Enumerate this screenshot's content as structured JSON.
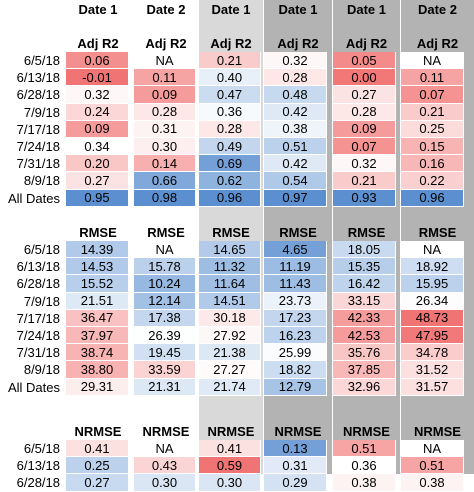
{
  "colors": {
    "band_light": "#d9d9d9",
    "band_dark": "#b3b3b3",
    "blue": "#5b8fd0",
    "red": "#ef5b5b",
    "neutral": "#ffffff"
  },
  "chart_data": {
    "type": "table",
    "column_headers": [
      "Date 1",
      "Date 2",
      "Date 1",
      "Date 1",
      "Date 1",
      "Date 2"
    ],
    "column_bands": [
      "none",
      "none",
      "light",
      "dark",
      "darker",
      "darker"
    ],
    "row_labels": [
      "6/5/18",
      "6/13/18",
      "6/28/18",
      "7/9/18",
      "7/17/18",
      "7/24/18",
      "7/31/18",
      "8/9/18",
      "All Dates"
    ],
    "sections": [
      {
        "metric_labels": [
          "Adj R2",
          "Adj R2",
          "Adj R2",
          "Adj R2",
          "Adj R2",
          "Adj R2"
        ],
        "higher_is_better": true,
        "row_labels": [
          "6/5/18",
          "6/13/18",
          "6/28/18",
          "7/9/18",
          "7/17/18",
          "7/24/18",
          "7/31/18",
          "8/9/18",
          "All Dates"
        ],
        "rows": [
          [
            "0.06",
            "NA",
            "0.21",
            "0.32",
            "0.05",
            "NA"
          ],
          [
            "-0.01",
            "0.11",
            "0.40",
            "0.28",
            "0.00",
            "0.11"
          ],
          [
            "0.32",
            "0.09",
            "0.47",
            "0.48",
            "0.27",
            "0.07"
          ],
          [
            "0.24",
            "0.28",
            "0.36",
            "0.42",
            "0.28",
            "0.21"
          ],
          [
            "0.09",
            "0.31",
            "0.28",
            "0.38",
            "0.09",
            "0.25"
          ],
          [
            "0.34",
            "0.30",
            "0.49",
            "0.51",
            "0.07",
            "0.15"
          ],
          [
            "0.20",
            "0.14",
            "0.69",
            "0.42",
            "0.32",
            "0.16"
          ],
          [
            "0.27",
            "0.66",
            "0.62",
            "0.54",
            "0.21",
            "0.22"
          ],
          [
            "0.95",
            "0.98",
            "0.96",
            "0.97",
            "0.93",
            "0.96"
          ]
        ]
      },
      {
        "metric_labels": [
          "RMSE",
          "RMSE",
          "RMSE",
          "RMSE",
          "RMSE",
          "RMSE"
        ],
        "higher_is_better": false,
        "row_labels": [
          "6/5/18",
          "6/13/18",
          "6/28/18",
          "7/9/18",
          "7/17/18",
          "7/24/18",
          "7/31/18",
          "8/9/18",
          "All Dates"
        ],
        "rows": [
          [
            "14.39",
            "NA",
            "14.65",
            "4.65",
            "18.05",
            "NA"
          ],
          [
            "14.53",
            "15.78",
            "11.32",
            "11.19",
            "15.35",
            "18.92"
          ],
          [
            "15.52",
            "10.24",
            "11.64",
            "11.43",
            "16.42",
            "15.95"
          ],
          [
            "21.51",
            "12.14",
            "14.51",
            "23.73",
            "33.15",
            "26.34"
          ],
          [
            "36.47",
            "17.38",
            "30.18",
            "17.23",
            "42.33",
            "48.73"
          ],
          [
            "37.97",
            "26.39",
            "27.92",
            "16.23",
            "42.53",
            "47.95"
          ],
          [
            "38.74",
            "19.45",
            "21.38",
            "25.99",
            "35.76",
            "34.78"
          ],
          [
            "38.80",
            "33.59",
            "27.27",
            "18.82",
            "37.85",
            "31.52"
          ],
          [
            "29.31",
            "21.31",
            "21.74",
            "12.79",
            "32.96",
            "31.57"
          ]
        ]
      },
      {
        "metric_labels": [
          "NRMSE",
          "NRMSE",
          "NRMSE",
          "NRMSE",
          "NRMSE",
          "NRMSE"
        ],
        "higher_is_better": false,
        "row_labels": [
          "6/5/18",
          "6/13/18",
          "6/28/18"
        ],
        "rows": [
          [
            "0.41",
            "NA",
            "0.41",
            "0.13",
            "0.51",
            "NA"
          ],
          [
            "0.25",
            "0.43",
            "0.59",
            "0.31",
            "0.36",
            "0.51"
          ],
          [
            "0.27",
            "0.30",
            "0.30",
            "0.29",
            "0.38",
            "0.38"
          ]
        ]
      }
    ]
  }
}
